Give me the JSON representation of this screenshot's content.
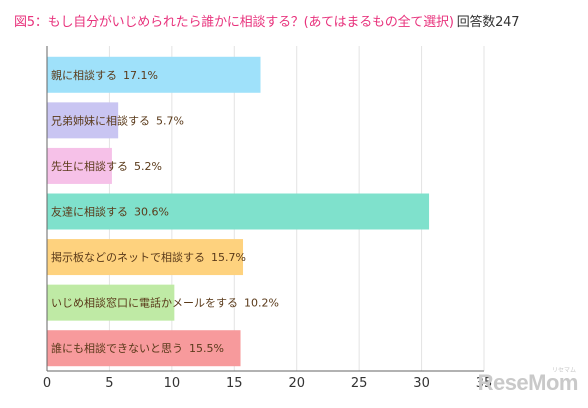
{
  "title": "図5：もし自分がいじめられたら誰かに相談する？(あてはまるもの全て選択)",
  "respondent_count": "回答数247",
  "watermark": "ReseMom",
  "watermark_sub": "リセマム",
  "chart_data": {
    "type": "bar",
    "orientation": "horizontal",
    "title": "図5：もし自分がいじめられたら誰かに相談する？(あてはまるもの全て選択)",
    "xlabel": "",
    "ylabel": "",
    "xlim": [
      0,
      35
    ],
    "ticks": [
      "0",
      "5",
      "10",
      "15",
      "20",
      "25",
      "30",
      "35"
    ],
    "grid": true,
    "categories": [
      "親に相談する",
      "兄弟姉妹に相談する",
      "先生に相談する",
      "友達に相談する",
      "掲示板などのネットで相談する",
      "いじめ相談窓口に電話かメールをする",
      "誰にも相談できないと思う"
    ],
    "values": [
      17.1,
      5.7,
      5.2,
      30.6,
      15.7,
      10.2,
      15.5
    ],
    "data_labels": [
      "17.1%",
      "5.7%",
      "5.2%",
      "30.6%",
      "15.7%",
      "10.2%",
      "15.5%"
    ],
    "colors": [
      "#9fe1fa",
      "#c9c5f2",
      "#f6c1e8",
      "#7fe1cc",
      "#fed27e",
      "#bfeaa5",
      "#f79a9c"
    ]
  }
}
